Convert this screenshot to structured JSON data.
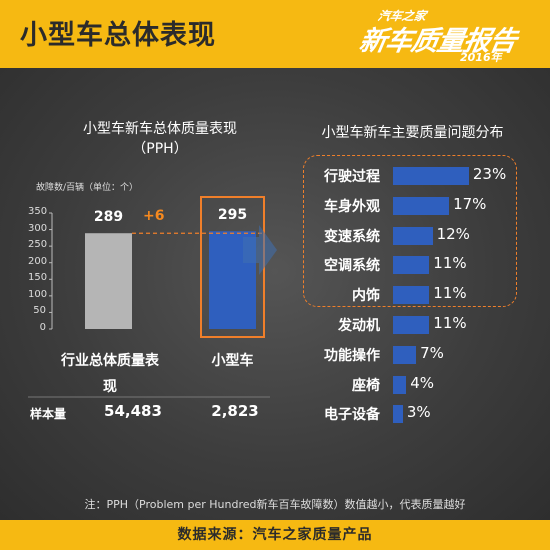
{
  "header": {
    "title": "小型车总体表现"
  },
  "logo": {
    "small": "汽车之家",
    "big": "新车质量报告",
    "year": "2016年"
  },
  "left": {
    "title_line1": "小型车新车总体质量表现",
    "title_line2": "（PPH）",
    "unit": "故障数/百辆（单位：个）",
    "diff": "+6",
    "sample_label": "样本量"
  },
  "right": {
    "title": "小型车新车主要质量问题分布"
  },
  "note": "注：PPH（Problem per Hundred新车百车故障数）数值越小，代表质量越好",
  "footer": {
    "source": "数据来源：汽车之家质量产品"
  },
  "colors": {
    "accent": "#f6b912",
    "bar_blue": "#2f5fbe",
    "bar_gray": "#b5b5b5",
    "highlight": "#f07f2a"
  },
  "chart_data": [
    {
      "type": "bar",
      "title": "小型车新车总体质量表现（PPH）",
      "ylabel": "故障数/百辆（单位：个）",
      "ylim": [
        0,
        350
      ],
      "yticks": [
        0,
        50,
        100,
        150,
        200,
        250,
        300,
        350
      ],
      "categories": [
        "行业总体质量表现",
        "小型车"
      ],
      "values": [
        289,
        295
      ],
      "value_labels": [
        "289",
        "295"
      ],
      "sample_sizes": [
        "54,483",
        "2,823"
      ]
    },
    {
      "type": "bar",
      "orientation": "horizontal",
      "title": "小型车新车主要质量问题分布",
      "categories": [
        "行驶过程",
        "车身外观",
        "变速系统",
        "空调系统",
        "内饰",
        "发动机",
        "功能操作",
        "座椅",
        "电子设备"
      ],
      "values": [
        23,
        17,
        12,
        11,
        11,
        11,
        7,
        4,
        3
      ],
      "value_labels": [
        "23%",
        "17%",
        "12%",
        "11%",
        "11%",
        "11%",
        "7%",
        "4%",
        "3%"
      ],
      "highlighted": [
        "行驶过程",
        "车身外观",
        "变速系统",
        "空调系统",
        "内饰"
      ]
    }
  ]
}
